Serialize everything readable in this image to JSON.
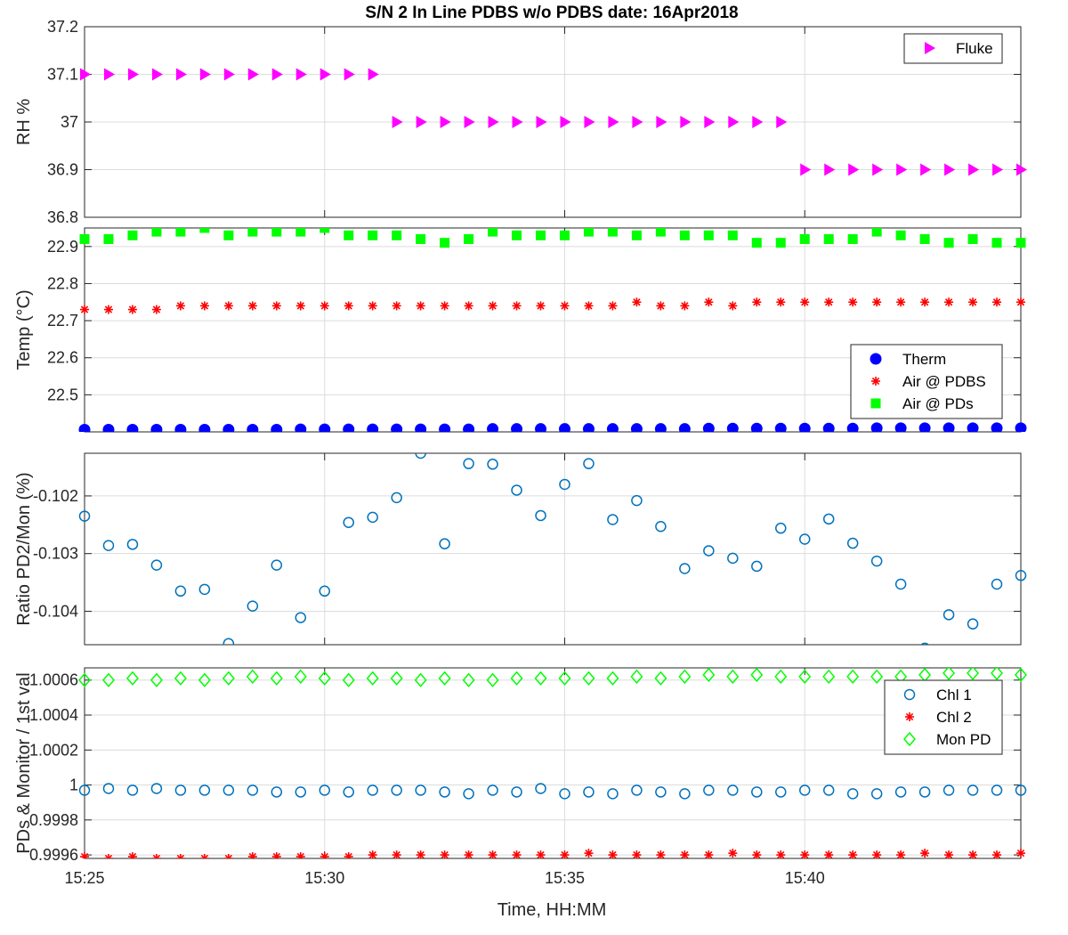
{
  "chart_data": {
    "title": "S/N 2 In Line PDBS w/o PDBS date: 16Apr2018",
    "xlabel": "Time, HH:MM",
    "xlim": [
      "15:25",
      "15:44.5"
    ],
    "xticks": [
      "15:25",
      "15:30",
      "15:35",
      "15:40"
    ],
    "x": [
      "15:25:00",
      "15:25:30",
      "15:26:00",
      "15:26:30",
      "15:27:00",
      "15:27:30",
      "15:28:00",
      "15:28:30",
      "15:29:00",
      "15:29:30",
      "15:30:00",
      "15:30:30",
      "15:31:00",
      "15:31:30",
      "15:32:00",
      "15:32:30",
      "15:33:00",
      "15:33:30",
      "15:34:00",
      "15:34:30",
      "15:35:00",
      "15:35:30",
      "15:36:00",
      "15:36:30",
      "15:37:00",
      "15:37:30",
      "15:38:00",
      "15:38:30",
      "15:39:00",
      "15:39:30",
      "15:40:00",
      "15:40:30",
      "15:41:00",
      "15:41:30",
      "15:42:00",
      "15:42:30",
      "15:43:00",
      "15:43:30",
      "15:44:00",
      "15:44:30"
    ],
    "panels": [
      {
        "type": "scatter",
        "ylabel": "RH %",
        "ylim": [
          36.8,
          37.2
        ],
        "yticks": [
          36.8,
          36.9,
          37,
          37.1,
          37.2
        ],
        "yticklabels": [
          "36.8",
          "36.9",
          "37",
          "37.1",
          "37.2"
        ],
        "grid": true,
        "legend": "top-right",
        "series": [
          {
            "name": "Fluke",
            "marker": "triangle-right",
            "color": "#ff00ff",
            "values": [
              37.1,
              37.1,
              37.1,
              37.1,
              37.1,
              37.1,
              37.1,
              37.1,
              37.1,
              37.1,
              37.1,
              37.1,
              37.1,
              37,
              37,
              37,
              37,
              37,
              37,
              37,
              37,
              37,
              37,
              37,
              37,
              37,
              37,
              37,
              37,
              37,
              36.9,
              36.9,
              36.9,
              36.9,
              36.9,
              36.9,
              36.9,
              36.9,
              36.9,
              36.9
            ]
          }
        ]
      },
      {
        "type": "scatter",
        "ylabel": "Temp (°C)",
        "ylim": [
          22.4,
          22.95
        ],
        "yticks": [
          22.5,
          22.6,
          22.7,
          22.8,
          22.9
        ],
        "yticklabels": [
          "22.5",
          "22.6",
          "22.7",
          "22.8",
          "22.9"
        ],
        "grid": true,
        "legend": "bottom-right",
        "series": [
          {
            "name": "Therm",
            "marker": "circle-filled",
            "color": "#0000ff",
            "values": [
              22.406,
              22.406,
              22.406,
              22.406,
              22.406,
              22.406,
              22.406,
              22.406,
              22.406,
              22.407,
              22.407,
              22.407,
              22.407,
              22.407,
              22.407,
              22.407,
              22.407,
              22.408,
              22.408,
              22.408,
              22.408,
              22.408,
              22.408,
              22.408,
              22.408,
              22.408,
              22.409,
              22.409,
              22.409,
              22.409,
              22.409,
              22.409,
              22.409,
              22.41,
              22.41,
              22.41,
              22.41,
              22.41,
              22.41,
              22.41
            ]
          },
          {
            "name": "Air @ PDBS",
            "marker": "asterisk",
            "color": "#ff0000",
            "values": [
              22.73,
              22.73,
              22.73,
              22.73,
              22.74,
              22.74,
              22.74,
              22.74,
              22.74,
              22.74,
              22.74,
              22.74,
              22.74,
              22.74,
              22.74,
              22.74,
              22.74,
              22.74,
              22.74,
              22.74,
              22.74,
              22.74,
              22.74,
              22.75,
              22.74,
              22.74,
              22.75,
              22.74,
              22.75,
              22.75,
              22.75,
              22.75,
              22.75,
              22.75,
              22.75,
              22.75,
              22.75,
              22.75,
              22.75,
              22.75
            ]
          },
          {
            "name": "Air @ PDs",
            "marker": "square-filled",
            "color": "#00ff00",
            "values": [
              22.92,
              22.92,
              22.93,
              22.94,
              22.94,
              22.95,
              22.93,
              22.94,
              22.94,
              22.94,
              22.95,
              22.93,
              22.93,
              22.93,
              22.92,
              22.91,
              22.92,
              22.94,
              22.93,
              22.93,
              22.93,
              22.94,
              22.94,
              22.93,
              22.94,
              22.93,
              22.93,
              22.93,
              22.91,
              22.91,
              22.92,
              22.92,
              22.92,
              22.94,
              22.93,
              22.92,
              22.91,
              22.92,
              22.91,
              22.91
            ]
          }
        ]
      },
      {
        "type": "scatter",
        "ylabel": "Ratio PD2/Mon (%)",
        "ylim": [
          -0.10458,
          -0.10126
        ],
        "yticks": [
          -0.104,
          -0.103,
          -0.102
        ],
        "yticklabels": [
          "-0.104",
          "-0.103",
          "-0.102"
        ],
        "grid": true,
        "legend": "none",
        "series": [
          {
            "name": "",
            "marker": "circle-open",
            "color": "#0072bd",
            "values": [
              -0.10235,
              -0.10286,
              -0.10284,
              -0.1032,
              -0.10365,
              -0.10362,
              -0.10456,
              -0.10391,
              -0.1032,
              -0.10411,
              -0.10365,
              -0.10246,
              -0.10237,
              -0.10203,
              -0.10126,
              -0.10283,
              -0.10144,
              -0.10145,
              -0.1019,
              -0.10234,
              -0.1018,
              -0.10144,
              -0.10241,
              -0.10208,
              -0.10253,
              -0.10326,
              -0.10295,
              -0.10308,
              -0.10322,
              -0.10256,
              -0.10275,
              -0.1024,
              -0.10282,
              -0.10313,
              -0.10353,
              -0.10464,
              -0.10406,
              -0.10422,
              -0.10353,
              -0.10338
            ]
          }
        ]
      },
      {
        "type": "scatter",
        "ylabel": "PDs & Monitor / 1st val",
        "ylim": [
          0.99958,
          1.00067
        ],
        "yticks": [
          0.9996,
          0.9998,
          1,
          1.0002,
          1.0004,
          1.0006
        ],
        "yticklabels": [
          "0.9996",
          "0.9998",
          "1",
          "1.0002",
          "1.0004",
          "1.0006"
        ],
        "grid": true,
        "legend": "top-right",
        "series": [
          {
            "name": "Chl 1",
            "marker": "circle-open",
            "color": "#0072bd",
            "values": [
              0.99997,
              0.99998,
              0.99997,
              0.99998,
              0.99997,
              0.99997,
              0.99997,
              0.99997,
              0.99996,
              0.99996,
              0.99997,
              0.99996,
              0.99997,
              0.99997,
              0.99997,
              0.99996,
              0.99995,
              0.99997,
              0.99996,
              0.99998,
              0.99995,
              0.99996,
              0.99995,
              0.99997,
              0.99996,
              0.99995,
              0.99997,
              0.99997,
              0.99996,
              0.99996,
              0.99997,
              0.99997,
              0.99995,
              0.99995,
              0.99996,
              0.99996,
              0.99997,
              0.99997,
              0.99997,
              0.99997
            ]
          },
          {
            "name": "Chl 2",
            "marker": "asterisk",
            "color": "#ff0000",
            "values": [
              0.99959,
              0.99958,
              0.99959,
              0.99958,
              0.99958,
              0.99958,
              0.99958,
              0.99959,
              0.99959,
              0.99959,
              0.99959,
              0.99959,
              0.9996,
              0.9996,
              0.9996,
              0.9996,
              0.9996,
              0.9996,
              0.9996,
              0.9996,
              0.9996,
              0.99961,
              0.9996,
              0.9996,
              0.9996,
              0.9996,
              0.9996,
              0.99961,
              0.9996,
              0.9996,
              0.9996,
              0.9996,
              0.9996,
              0.9996,
              0.9996,
              0.99961,
              0.9996,
              0.9996,
              0.9996,
              0.99961
            ]
          },
          {
            "name": "Mon PD",
            "marker": "diamond-open",
            "color": "#00ff00",
            "values": [
              1.0006,
              1.0006,
              1.00061,
              1.0006,
              1.00061,
              1.0006,
              1.00061,
              1.00062,
              1.00061,
              1.00062,
              1.00061,
              1.0006,
              1.00061,
              1.00061,
              1.0006,
              1.00061,
              1.0006,
              1.0006,
              1.00061,
              1.00061,
              1.00061,
              1.00061,
              1.00061,
              1.00062,
              1.00061,
              1.00062,
              1.00063,
              1.00062,
              1.00063,
              1.00062,
              1.00062,
              1.00062,
              1.00062,
              1.00062,
              1.00062,
              1.00063,
              1.00064,
              1.00064,
              1.00064,
              1.00063
            ]
          }
        ]
      }
    ]
  }
}
